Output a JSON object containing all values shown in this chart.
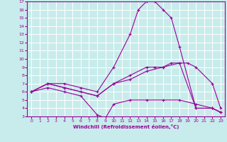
{
  "xlabel": "Windchill (Refroidissement éolien,°C)",
  "xlim": [
    -0.5,
    23.5
  ],
  "ylim": [
    3,
    17
  ],
  "yticks": [
    3,
    4,
    5,
    6,
    7,
    8,
    9,
    10,
    11,
    12,
    13,
    14,
    15,
    16,
    17
  ],
  "xticks": [
    0,
    1,
    2,
    3,
    4,
    5,
    6,
    7,
    8,
    9,
    10,
    11,
    12,
    13,
    14,
    15,
    16,
    17,
    18,
    19,
    20,
    21,
    22,
    23
  ],
  "background_color": "#c8ecec",
  "line_color": "#990099",
  "grid_color": "#ffffff",
  "lines": [
    {
      "x": [
        0,
        2,
        4,
        6,
        8,
        10,
        12,
        13,
        14,
        15,
        16,
        17,
        18,
        20,
        22,
        23
      ],
      "y": [
        6,
        7,
        7,
        6.5,
        6,
        9,
        13,
        16,
        17,
        17,
        16,
        15,
        11.5,
        4,
        4,
        3.5
      ]
    },
    {
      "x": [
        0,
        2,
        4,
        8,
        10,
        12,
        14,
        15,
        16,
        17,
        18,
        20,
        22,
        23
      ],
      "y": [
        6,
        7,
        6.5,
        5.5,
        7,
        8,
        9,
        9,
        9,
        9.5,
        9.5,
        4,
        4,
        3.5
      ]
    },
    {
      "x": [
        0,
        2,
        4,
        6,
        8,
        10,
        12,
        14,
        16,
        18,
        19,
        20,
        22,
        23
      ],
      "y": [
        6,
        7,
        6.5,
        6,
        5.5,
        7,
        7.5,
        8.5,
        9,
        9.5,
        9.5,
        9,
        7,
        4
      ]
    },
    {
      "x": [
        0,
        2,
        4,
        6,
        8,
        9,
        10,
        12,
        14,
        16,
        18,
        20,
        22,
        23
      ],
      "y": [
        6,
        6.5,
        6,
        5.5,
        3.2,
        2.8,
        4.5,
        5,
        5,
        5,
        5,
        4.5,
        4,
        3.5
      ]
    }
  ]
}
